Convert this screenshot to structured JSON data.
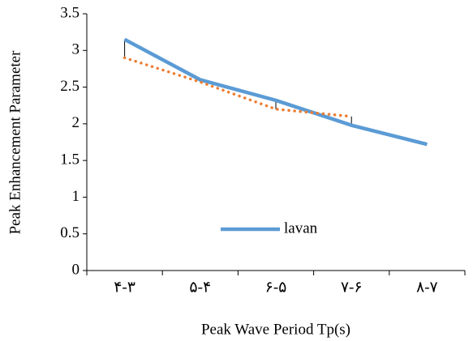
{
  "chart_data": {
    "type": "line",
    "x_label": "Peak Wave Period Tp(s)",
    "y_label": "Peak Enhancement Parameter",
    "categories": [
      "۴-۳",
      "۵-۴",
      "۶-۵",
      "۷-۶",
      "۸-۷"
    ],
    "series": [
      {
        "name": "lavan",
        "color": "#5b9bd5",
        "style": "solid",
        "values": [
          3.15,
          2.6,
          2.32,
          1.98,
          1.72
        ]
      },
      {
        "color": "#ed7d31",
        "style": "dotted",
        "values": [
          2.9,
          2.57,
          2.2,
          2.1,
          null
        ]
      }
    ],
    "ylim": [
      0,
      3.5
    ],
    "yticks": [
      0,
      0.5,
      1,
      1.5,
      2,
      2.5,
      3,
      3.5
    ],
    "grid": false,
    "legend": "lower center"
  }
}
